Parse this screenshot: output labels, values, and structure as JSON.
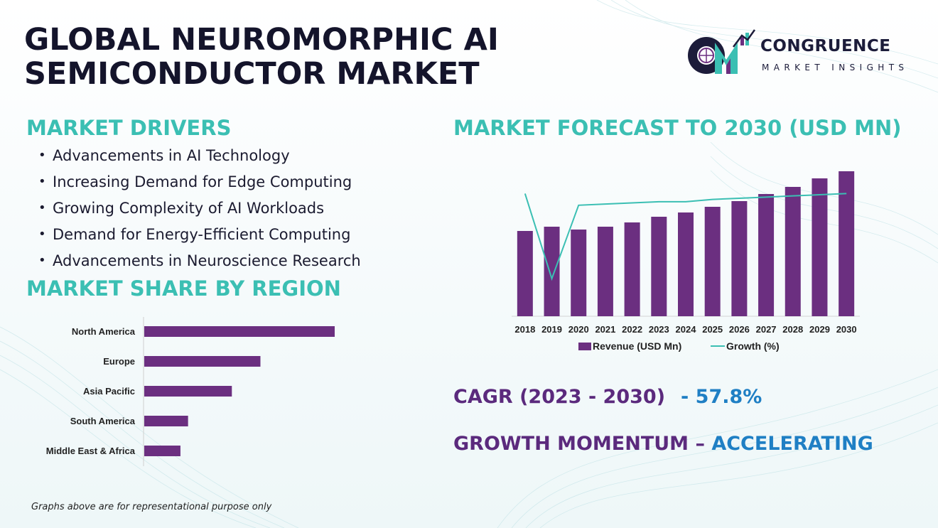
{
  "title": {
    "line1": "GLOBAL NEUROMORPHIC AI",
    "line2": "SEMICONDUCTOR MARKET"
  },
  "logo": {
    "monogram": "CM",
    "word1": "CONGRUENCE",
    "word2": "MARKET INSIGHTS"
  },
  "drivers": {
    "heading": "MARKET DRIVERS",
    "items": [
      "Advancements in AI Technology",
      "Increasing Demand for Edge Computing",
      "Growing Complexity of AI Workloads",
      "Demand for Energy-Efficient Computing",
      "Advancements in Neuroscience Research"
    ]
  },
  "region": {
    "heading": "MARKET SHARE BY REGION"
  },
  "forecast": {
    "heading": "MARKET FORECAST TO 2030 (USD MN)"
  },
  "cagr": {
    "label": "CAGR (2023 - 2030)",
    "value": "- 57.8%"
  },
  "momentum": {
    "label": "GROWTH MOMENTUM – ",
    "value": "ACCELERATING"
  },
  "footnote": "Graphs above are for representational purpose only",
  "colors": {
    "accent_teal": "#3bbfb3",
    "bar_purple": "#6b2f80",
    "line_teal": "#3bbfb3",
    "cagr_purple": "#5b2a7d",
    "cagr_blue": "#1f7fc4"
  },
  "chart_data": [
    {
      "type": "bar",
      "orientation": "horizontal",
      "categories": [
        "North America",
        "Europe",
        "Asia Pacific",
        "South America",
        "Middle East & Africa"
      ],
      "values": [
        100,
        61,
        46,
        23,
        19
      ],
      "grid": false
    },
    {
      "type": "bar",
      "categories": [
        "2018",
        "2019",
        "2020",
        "2021",
        "2022",
        "2023",
        "2024",
        "2025",
        "2026",
        "2027",
        "2028",
        "2029",
        "2030"
      ],
      "series": [
        {
          "name": "Revenue (USD Mn)",
          "type": "bar",
          "values": [
            60,
            63,
            61,
            63,
            66,
            70,
            73,
            77,
            81,
            86,
            91,
            97,
            102
          ]
        },
        {
          "name": "Growth (%)",
          "type": "line",
          "values": [
            90,
            17,
            80,
            81,
            82,
            83,
            83,
            85,
            86,
            87,
            88,
            89,
            90
          ]
        }
      ],
      "legend": "bottom",
      "grid": false
    }
  ]
}
